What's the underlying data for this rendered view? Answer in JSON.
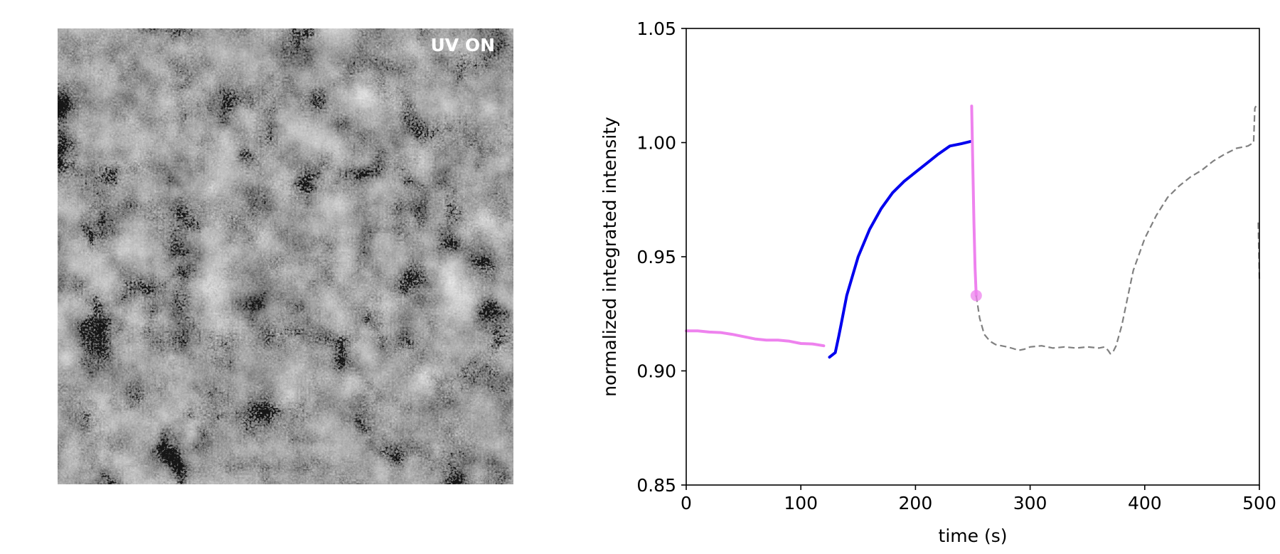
{
  "image_panel": {
    "overlay_label": "UV ON",
    "tone": {
      "dark": "#8a8a8a",
      "light": "#d6d6d6"
    }
  },
  "chart_data": {
    "type": "line",
    "title": "",
    "xlabel": "time (s)",
    "ylabel": "normalized integrated intensity",
    "xlim": [
      0,
      500
    ],
    "ylim": [
      0.85,
      1.05
    ],
    "xticks": [
      0,
      100,
      200,
      300,
      400,
      500
    ],
    "yticks": [
      0.85,
      0.9,
      0.95,
      1.0,
      1.05
    ],
    "ytick_labels": [
      "0.85",
      "0.90",
      "0.95",
      "1.00",
      "1.05"
    ],
    "grid": false,
    "series": [
      {
        "color": "#ee82ee",
        "style": "solid",
        "x": [
          0,
          10,
          20,
          30,
          40,
          50,
          60,
          70,
          80,
          90,
          100,
          110,
          120
        ],
        "y": [
          0.9175,
          0.9175,
          0.917,
          0.9168,
          0.916,
          0.915,
          0.914,
          0.9135,
          0.9135,
          0.913,
          0.912,
          0.9118,
          0.911
        ]
      },
      {
        "color": "#0000ee",
        "style": "solid",
        "x": [
          125,
          130,
          133,
          135,
          140,
          150,
          160,
          170,
          180,
          190,
          200,
          210,
          220,
          230,
          240,
          248
        ],
        "y": [
          0.906,
          0.908,
          0.915,
          0.92,
          0.933,
          0.95,
          0.962,
          0.971,
          0.978,
          0.983,
          0.987,
          0.991,
          0.995,
          0.9985,
          0.9995,
          1.0005
        ]
      },
      {
        "color": "#ee82ee",
        "style": "solid",
        "x": [
          249,
          250,
          251,
          252,
          253
        ],
        "y": [
          1.016,
          0.99,
          0.965,
          0.945,
          0.933
        ]
      },
      {
        "color": "#808080",
        "style": "dashed",
        "x": [
          253,
          256,
          260,
          265,
          270,
          275,
          280,
          285,
          290,
          295,
          300,
          310,
          320,
          330,
          340,
          350,
          360,
          365,
          368,
          370,
          372,
          375,
          380,
          385,
          390,
          400,
          410,
          420,
          430,
          440,
          450,
          460,
          470,
          480,
          490,
          495,
          496,
          497
        ],
        "y": [
          0.933,
          0.923,
          0.916,
          0.913,
          0.9115,
          0.911,
          0.9105,
          0.9098,
          0.909,
          0.9095,
          0.9105,
          0.911,
          0.91,
          0.9105,
          0.91,
          0.9105,
          0.91,
          0.9105,
          0.909,
          0.9075,
          0.908,
          0.911,
          0.92,
          0.932,
          0.944,
          0.958,
          0.968,
          0.976,
          0.981,
          0.985,
          0.988,
          0.992,
          0.995,
          0.9975,
          0.9985,
          1.0,
          1.015,
          1.016
        ]
      },
      {
        "color": "#808080",
        "style": "dashed",
        "x": [
          499,
          500
        ],
        "y": [
          0.965,
          0.94
        ]
      }
    ],
    "markers": [
      {
        "x": 253,
        "y": 0.933,
        "color": "#ee82ee"
      }
    ]
  }
}
